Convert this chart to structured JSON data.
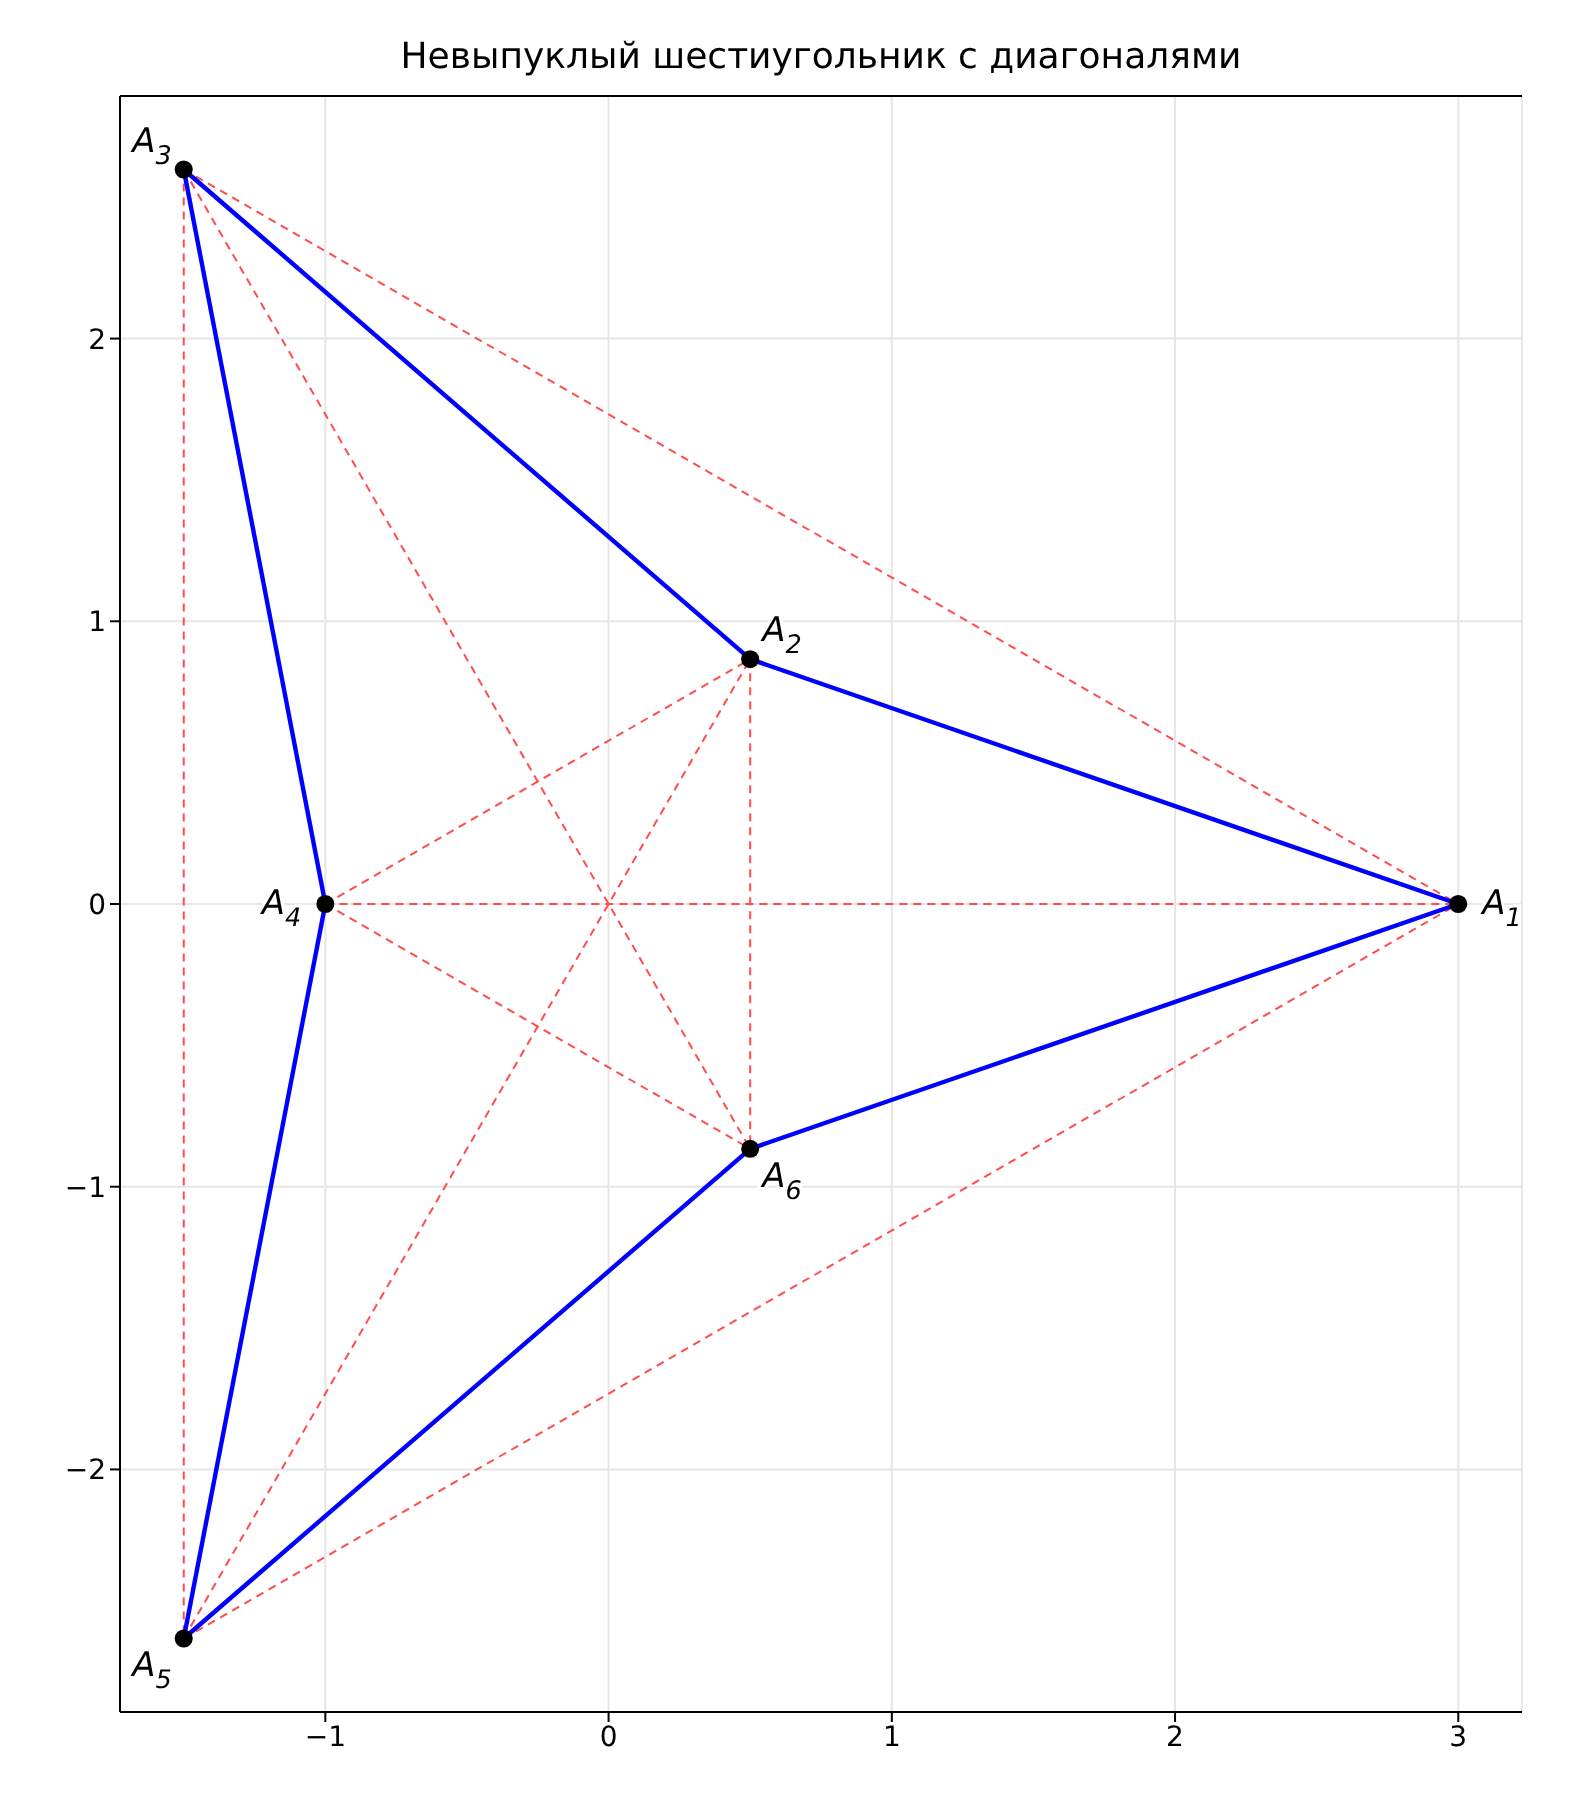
{
  "chart_data": {
    "type": "line",
    "title": "Невыпуклый шестиугольник с диагоналями",
    "xlim": [
      -1.725,
      3.225
    ],
    "ylim": [
      -2.858,
      2.858
    ],
    "xticks": [
      {
        "value": -1,
        "label": "−1"
      },
      0,
      1,
      2,
      3
    ],
    "yticks": [
      {
        "value": -2,
        "label": "−2"
      },
      {
        "value": -1,
        "label": "−1"
      },
      0,
      1,
      2
    ],
    "grid": true,
    "series": [
      {
        "color": "#ff4c4c",
        "line_style": "dashed",
        "marker": "none",
        "x": [
          -1.5,
          3
        ],
        "values": [
          2.598,
          0
        ]
      },
      {
        "color": "#ff4c4c",
        "line_style": "dashed",
        "marker": "none",
        "x": [
          -1,
          3
        ],
        "values": [
          0,
          0
        ]
      },
      {
        "color": "#ff4c4c",
        "line_style": "dashed",
        "marker": "none",
        "x": [
          -1.5,
          3
        ],
        "values": [
          -2.598,
          0
        ]
      },
      {
        "color": "#ff4c4c",
        "line_style": "dashed",
        "marker": "none",
        "x": [
          -1,
          0.5
        ],
        "values": [
          0,
          0.866
        ]
      },
      {
        "color": "#ff4c4c",
        "line_style": "dashed",
        "marker": "none",
        "x": [
          -1.5,
          0.5
        ],
        "values": [
          -2.598,
          0.866
        ]
      },
      {
        "color": "#ff4c4c",
        "line_style": "dashed",
        "marker": "none",
        "x": [
          0.5,
          0.5
        ],
        "values": [
          0.866,
          -0.866
        ]
      },
      {
        "color": "#ff4c4c",
        "line_style": "dashed",
        "marker": "none",
        "x": [
          -1.5,
          -1.5
        ],
        "values": [
          2.598,
          -2.598
        ]
      },
      {
        "color": "#ff4c4c",
        "line_style": "dashed",
        "marker": "none",
        "x": [
          -1.5,
          0.5
        ],
        "values": [
          2.598,
          -0.866
        ]
      },
      {
        "color": "#ff4c4c",
        "line_style": "dashed",
        "marker": "none",
        "x": [
          -1,
          0.5
        ],
        "values": [
          0,
          -0.866
        ]
      },
      {
        "color": "#0000ff",
        "line_style": "solid",
        "marker": "none",
        "x": [
          0.5,
          3
        ],
        "values": [
          0.866,
          0
        ]
      },
      {
        "color": "#0000ff",
        "line_style": "solid",
        "marker": "none",
        "x": [
          -1.5,
          0.5
        ],
        "values": [
          2.598,
          0.866
        ]
      },
      {
        "color": "#0000ff",
        "line_style": "solid",
        "marker": "none",
        "x": [
          -1.5,
          -1
        ],
        "values": [
          2.598,
          0
        ]
      },
      {
        "color": "#0000ff",
        "line_style": "solid",
        "marker": "none",
        "x": [
          -1.5,
          -1
        ],
        "values": [
          -2.598,
          0
        ]
      },
      {
        "color": "#0000ff",
        "line_style": "solid",
        "marker": "none",
        "x": [
          -1.5,
          0.5
        ],
        "values": [
          -2.598,
          -0.866
        ]
      },
      {
        "color": "#0000ff",
        "line_style": "solid",
        "marker": "none",
        "x": [
          0.5,
          3
        ],
        "values": [
          -0.866,
          0
        ]
      },
      {
        "type": "scatter",
        "color": "#000000",
        "marker": "circle",
        "x": [
          3,
          0.5,
          -1.5,
          -1,
          -1.5,
          0.5
        ],
        "values": [
          0,
          0.866,
          2.598,
          0,
          -2.598,
          -0.866
        ]
      }
    ],
    "annotations": [
      {
        "text": "A$_{1}$",
        "x": 3,
        "y": 0
      },
      {
        "text": "A$_{2}$",
        "x": 0.5,
        "y": 0.866
      },
      {
        "text": "A$_{3}$",
        "x": -1.5,
        "y": 2.598
      },
      {
        "text": "A$_{4}$",
        "x": -1,
        "y": 0
      },
      {
        "text": "A$_{5}$",
        "x": -1.5,
        "y": -2.598
      },
      {
        "text": "A$_{6}$",
        "x": 0.5,
        "y": -0.866
      }
    ]
  }
}
